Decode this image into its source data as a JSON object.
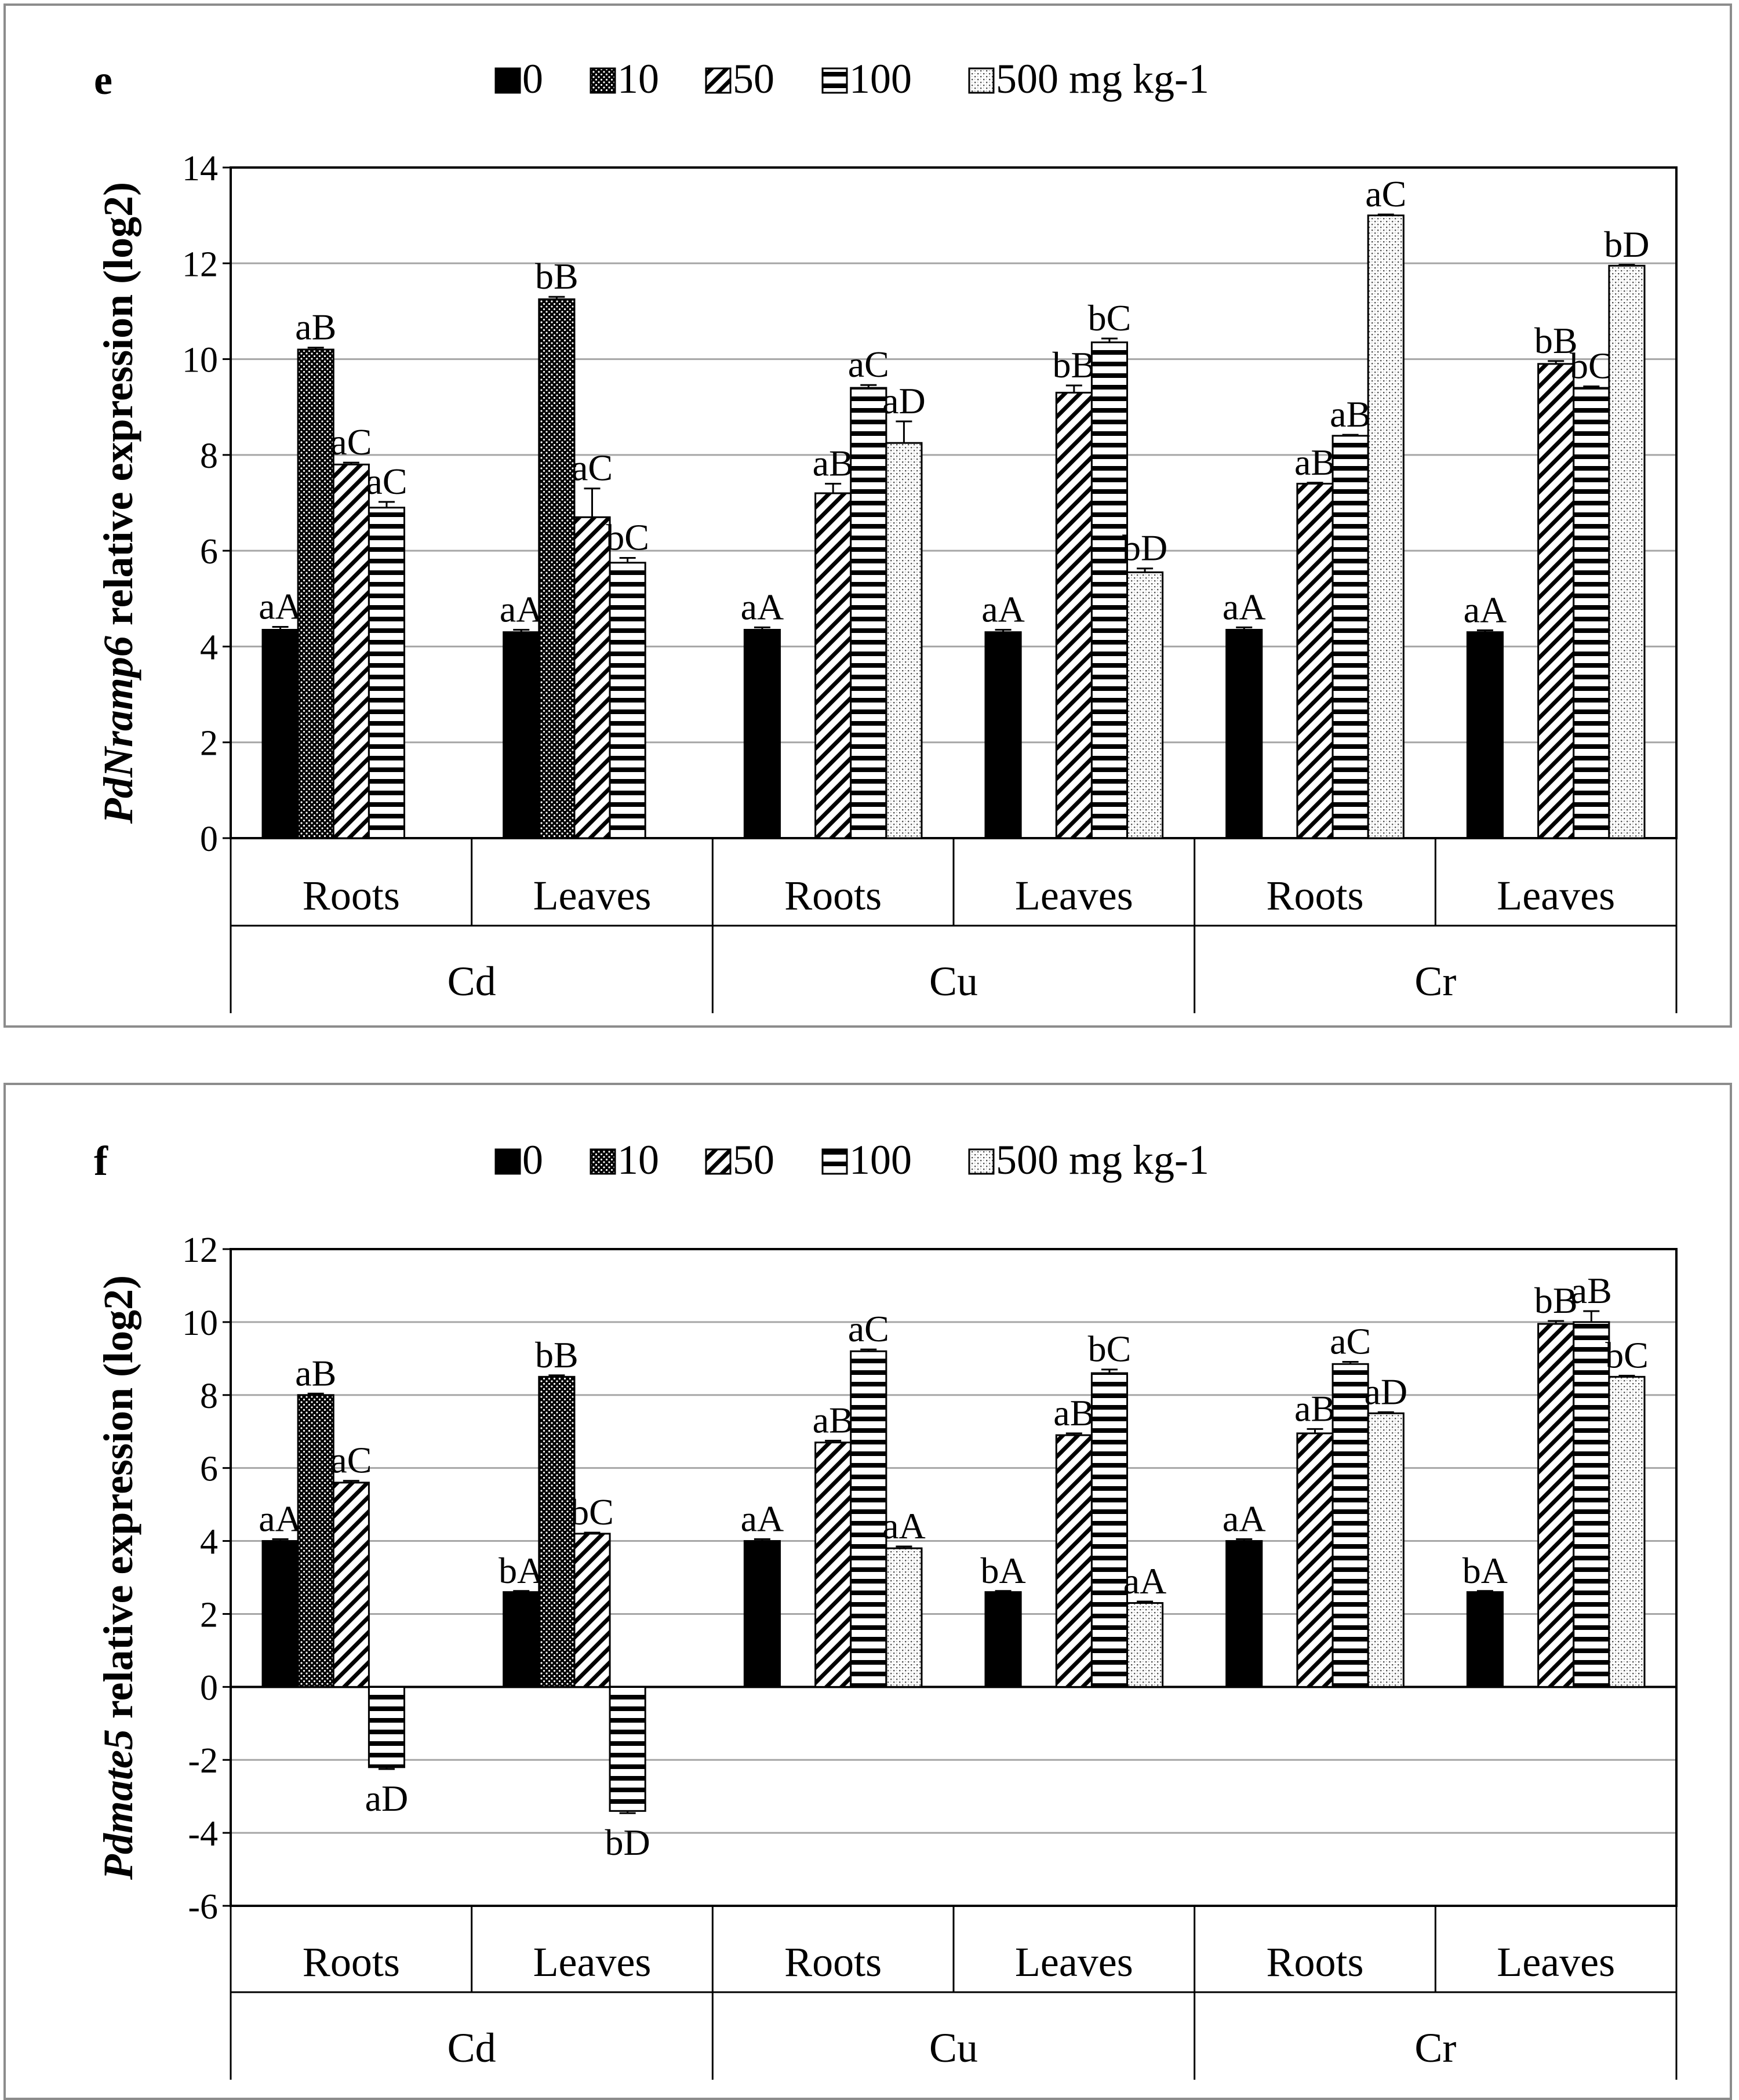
{
  "colors": {
    "bar_fill": "#000000",
    "bar_bg": "#ffffff",
    "grid": "#a6a6a6",
    "frame": "#8c8c8c",
    "axis": "#000000"
  },
  "legend": {
    "items": [
      {
        "label": "0",
        "pattern": "solid"
      },
      {
        "label": "10",
        "pattern": "dots"
      },
      {
        "label": "50",
        "pattern": "diag"
      },
      {
        "label": "100",
        "pattern": "hlines"
      },
      {
        "label": "500 mg kg-1",
        "pattern": "speckle"
      }
    ]
  },
  "chart_data": [
    {
      "type": "bar",
      "panel_label": "e",
      "ylabel_italic": "PdNramp6",
      "ylabel_rest": " relative expression (log2)",
      "ylim": [
        0,
        14
      ],
      "ytick_step": 2,
      "ytick_labels": [
        "0",
        "2",
        "4",
        "6",
        "8",
        "10",
        "12",
        "14"
      ],
      "groups": [
        {
          "metal": "Cd",
          "tissues": [
            {
              "tissue": "Roots",
              "bars": [
                {
                  "series": "0",
                  "value": 4.35,
                  "err": 0.06,
                  "label": "aA"
                },
                {
                  "series": "10",
                  "value": 10.2,
                  "err": 0.04,
                  "label": "aB"
                },
                {
                  "series": "50",
                  "value": 7.8,
                  "err": 0.04,
                  "label": "aC"
                },
                {
                  "series": "100",
                  "value": 6.9,
                  "err": 0.12,
                  "label": "aC"
                }
              ]
            },
            {
              "tissue": "Leaves",
              "bars": [
                {
                  "series": "0",
                  "value": 4.3,
                  "err": 0.05,
                  "label": "aA"
                },
                {
                  "series": "10",
                  "value": 11.25,
                  "err": 0.05,
                  "label": "bB"
                },
                {
                  "series": "50",
                  "value": 6.7,
                  "err": 0.6,
                  "label": "aC"
                },
                {
                  "series": "100",
                  "value": 5.75,
                  "err": 0.1,
                  "label": "bC"
                }
              ]
            }
          ]
        },
        {
          "metal": "Cu",
          "tissues": [
            {
              "tissue": "Roots",
              "bars": [
                {
                  "series": "0",
                  "value": 4.35,
                  "err": 0.05,
                  "label": "aA"
                },
                {
                  "series": "50",
                  "value": 7.2,
                  "err": 0.2,
                  "label": "aB"
                },
                {
                  "series": "100",
                  "value": 9.4,
                  "err": 0.06,
                  "label": "aC"
                },
                {
                  "series": "500 mg kg-1",
                  "value": 8.25,
                  "err": 0.45,
                  "label": "aD"
                }
              ]
            },
            {
              "tissue": "Leaves",
              "bars": [
                {
                  "series": "0",
                  "value": 4.3,
                  "err": 0.05,
                  "label": "aA"
                },
                {
                  "series": "50",
                  "value": 9.3,
                  "err": 0.15,
                  "label": "bB"
                },
                {
                  "series": "100",
                  "value": 10.35,
                  "err": 0.08,
                  "label": "bC"
                },
                {
                  "series": "500 mg kg-1",
                  "value": 5.55,
                  "err": 0.08,
                  "label": "bD"
                }
              ]
            }
          ]
        },
        {
          "metal": "Cr",
          "tissues": [
            {
              "tissue": "Roots",
              "bars": [
                {
                  "series": "0",
                  "value": 4.35,
                  "err": 0.05,
                  "label": "aA"
                },
                {
                  "series": "50",
                  "value": 7.4,
                  "err": 0.02,
                  "label": "aB"
                },
                {
                  "series": "100",
                  "value": 8.4,
                  "err": 0.02,
                  "label": "aB"
                },
                {
                  "series": "500 mg kg-1",
                  "value": 13.0,
                  "err": 0.02,
                  "label": "aC"
                }
              ]
            },
            {
              "tissue": "Leaves",
              "bars": [
                {
                  "series": "0",
                  "value": 4.3,
                  "err": 0.04,
                  "label": "aA"
                },
                {
                  "series": "50",
                  "value": 9.9,
                  "err": 0.06,
                  "label": "bB"
                },
                {
                  "series": "100",
                  "value": 9.4,
                  "err": 0.03,
                  "label": "bC"
                },
                {
                  "series": "500 mg kg-1",
                  "value": 11.95,
                  "err": 0.02,
                  "label": "bD"
                }
              ]
            }
          ]
        }
      ]
    },
    {
      "type": "bar",
      "panel_label": "f",
      "ylabel_italic": "Pdmate5",
      "ylabel_rest": " relative expression (log2)",
      "ylim": [
        -6,
        12
      ],
      "ytick_step": 2,
      "ytick_labels": [
        "-6",
        "-4",
        "-2",
        "0",
        "2",
        "4",
        "6",
        "8",
        "10",
        "12"
      ],
      "groups": [
        {
          "metal": "Cd",
          "tissues": [
            {
              "tissue": "Roots",
              "bars": [
                {
                  "series": "0",
                  "value": 4.0,
                  "err": 0.05,
                  "label": "aA"
                },
                {
                  "series": "10",
                  "value": 8.0,
                  "err": 0.04,
                  "label": "aB"
                },
                {
                  "series": "50",
                  "value": 5.6,
                  "err": 0.05,
                  "label": "aC"
                },
                {
                  "series": "100",
                  "value": -2.2,
                  "err": 0.05,
                  "label": "aD"
                }
              ]
            },
            {
              "tissue": "Leaves",
              "bars": [
                {
                  "series": "0",
                  "value": 2.6,
                  "err": 0.03,
                  "label": "bA"
                },
                {
                  "series": "10",
                  "value": 8.5,
                  "err": 0.04,
                  "label": "bB"
                },
                {
                  "series": "50",
                  "value": 4.2,
                  "err": 0.03,
                  "label": "bC"
                },
                {
                  "series": "100",
                  "value": -3.4,
                  "err": 0.06,
                  "label": "bD"
                }
              ]
            }
          ]
        },
        {
          "metal": "Cu",
          "tissues": [
            {
              "tissue": "Roots",
              "bars": [
                {
                  "series": "0",
                  "value": 4.0,
                  "err": 0.05,
                  "label": "aA"
                },
                {
                  "series": "50",
                  "value": 6.7,
                  "err": 0.05,
                  "label": "aB"
                },
                {
                  "series": "100",
                  "value": 9.2,
                  "err": 0.05,
                  "label": "aC"
                },
                {
                  "series": "500 mg kg-1",
                  "value": 3.8,
                  "err": 0.05,
                  "label": "aA"
                }
              ]
            },
            {
              "tissue": "Leaves",
              "bars": [
                {
                  "series": "0",
                  "value": 2.6,
                  "err": 0.03,
                  "label": "bA"
                },
                {
                  "series": "50",
                  "value": 6.9,
                  "err": 0.05,
                  "label": "aB"
                },
                {
                  "series": "100",
                  "value": 8.6,
                  "err": 0.1,
                  "label": "bC"
                },
                {
                  "series": "500 mg kg-1",
                  "value": 2.3,
                  "err": 0.04,
                  "label": "aA"
                }
              ]
            }
          ]
        },
        {
          "metal": "Cr",
          "tissues": [
            {
              "tissue": "Roots",
              "bars": [
                {
                  "series": "0",
                  "value": 4.0,
                  "err": 0.05,
                  "label": "aA"
                },
                {
                  "series": "50",
                  "value": 6.95,
                  "err": 0.12,
                  "label": "aB"
                },
                {
                  "series": "100",
                  "value": 8.85,
                  "err": 0.06,
                  "label": "aC"
                },
                {
                  "series": "500 mg kg-1",
                  "value": 7.5,
                  "err": 0.03,
                  "label": "aD"
                }
              ]
            },
            {
              "tissue": "Leaves",
              "bars": [
                {
                  "series": "0",
                  "value": 2.6,
                  "err": 0.03,
                  "label": "bA"
                },
                {
                  "series": "50",
                  "value": 9.95,
                  "err": 0.08,
                  "label": "bB"
                },
                {
                  "series": "100",
                  "value": 10.0,
                  "err": 0.3,
                  "label": "aB"
                },
                {
                  "series": "500 mg kg-1",
                  "value": 8.5,
                  "err": 0.03,
                  "label": "bC"
                }
              ]
            }
          ]
        }
      ]
    }
  ]
}
